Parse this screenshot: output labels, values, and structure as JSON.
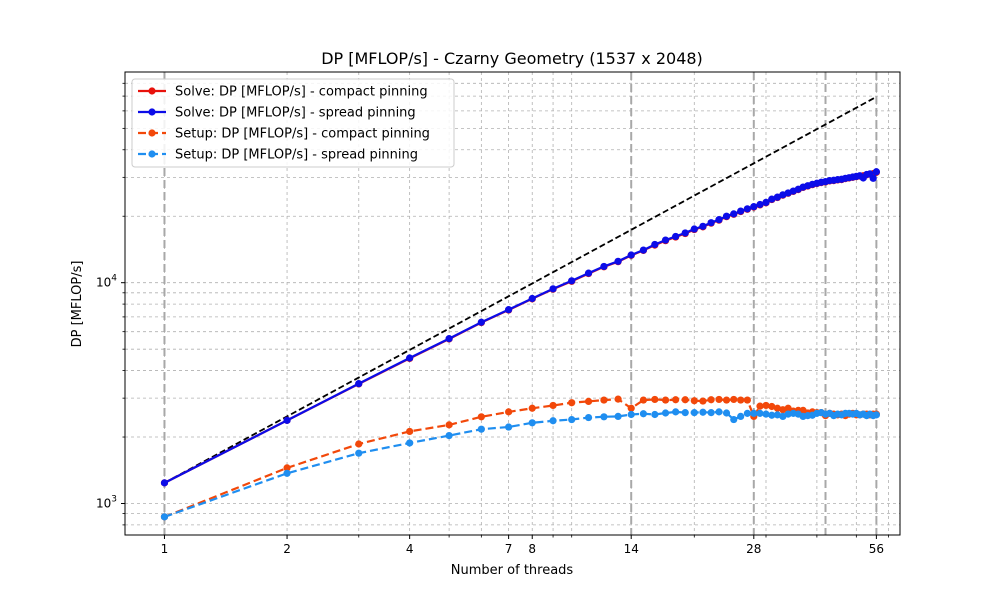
{
  "chart_data": {
    "type": "line",
    "title": "DP [MFLOP/s] - Czarny Geometry (1537 x 2048)",
    "xlabel": "Number of threads",
    "ylabel": "DP [MFLOP/s]",
    "xscale": "log",
    "yscale": "log",
    "xlim": [
      0.8,
      64
    ],
    "ylim": [
      720,
      90000
    ],
    "x_ticks": [
      1,
      2,
      4,
      7,
      8,
      14,
      28,
      56
    ],
    "y_ticks": [
      {
        "value": 1000,
        "base": "10",
        "exp": "3"
      },
      {
        "value": 10000,
        "base": "10",
        "exp": "4"
      }
    ],
    "y_minor_ticks": [
      800,
      900,
      2000,
      3000,
      4000,
      5000,
      6000,
      7000,
      8000,
      9000,
      20000,
      30000,
      40000,
      50000,
      60000,
      70000,
      80000
    ],
    "x_minor_ticks": [
      3,
      5,
      6,
      9,
      10,
      20,
      30,
      40,
      50,
      60
    ],
    "vlines": [
      1,
      14,
      28,
      42,
      56
    ],
    "grid": true,
    "legend_position": "upper-left",
    "reference_line": {
      "x": [
        1,
        56
      ],
      "y": [
        1240,
        69440
      ],
      "color": "#000000",
      "style": "dashed"
    },
    "series": [
      {
        "name": "Solve: DP [MFLOP/s] - compact pinning",
        "color": "#e8120c",
        "style": "solid",
        "x": [
          1,
          2,
          3,
          4,
          5,
          6,
          7,
          8,
          9,
          10,
          11,
          12,
          13,
          14,
          15,
          16,
          17,
          18,
          19,
          20,
          21,
          22,
          23,
          24,
          25,
          26,
          27,
          28,
          29,
          30,
          31,
          32,
          33,
          34,
          35,
          36,
          37,
          38,
          39,
          40,
          41,
          42,
          43,
          44,
          45,
          46,
          47,
          48,
          49,
          50,
          51,
          52,
          53,
          54,
          55,
          56
        ],
        "y": [
          1240,
          2380,
          3480,
          4540,
          5560,
          6600,
          7520,
          8450,
          9350,
          10150,
          11000,
          11800,
          12450,
          13300,
          14000,
          14800,
          15500,
          16100,
          16700,
          17400,
          17900,
          18600,
          19200,
          19900,
          20400,
          21000,
          21500,
          22000,
          22500,
          23000,
          23800,
          24300,
          24900,
          25400,
          25900,
          26400,
          27000,
          27400,
          27800,
          28100,
          28400,
          28600,
          28900,
          29000,
          29200,
          29300,
          29600,
          29800,
          30000,
          30200,
          30400,
          30500,
          30800,
          31000,
          31200,
          31600
        ]
      },
      {
        "name": "Solve: DP [MFLOP/s] - spread pinning",
        "color": "#0c0ce8",
        "style": "solid",
        "x": [
          1,
          2,
          3,
          4,
          5,
          6,
          7,
          8,
          9,
          10,
          11,
          12,
          13,
          14,
          15,
          16,
          17,
          18,
          19,
          20,
          21,
          22,
          23,
          24,
          25,
          26,
          27,
          28,
          29,
          30,
          31,
          32,
          33,
          34,
          35,
          36,
          37,
          38,
          39,
          40,
          41,
          42,
          43,
          44,
          45,
          46,
          47,
          48,
          49,
          50,
          51,
          52,
          53,
          54,
          55,
          56
        ],
        "y": [
          1240,
          2380,
          3490,
          4560,
          5580,
          6620,
          7550,
          8480,
          9380,
          10200,
          11050,
          11850,
          12500,
          13350,
          14050,
          14900,
          15600,
          16200,
          16800,
          17500,
          18000,
          18700,
          19300,
          20000,
          20500,
          21100,
          21600,
          22100,
          22600,
          23100,
          23900,
          24400,
          25000,
          25500,
          26000,
          26500,
          27100,
          27500,
          27900,
          28200,
          28500,
          28700,
          29000,
          29100,
          29300,
          29400,
          29700,
          29900,
          30100,
          30300,
          30500,
          29800,
          30900,
          31100,
          29700,
          31800
        ]
      },
      {
        "name": "Setup: DP [MFLOP/s] - compact pinning",
        "color": "#f2480a",
        "style": "dashed",
        "x": [
          1,
          2,
          3,
          4,
          5,
          6,
          7,
          8,
          9,
          10,
          11,
          12,
          13,
          14,
          15,
          16,
          17,
          18,
          19,
          20,
          21,
          22,
          23,
          24,
          25,
          26,
          27,
          28,
          29,
          30,
          31,
          32,
          33,
          34,
          35,
          36,
          37,
          38,
          39,
          40,
          41,
          42,
          43,
          44,
          45,
          46,
          47,
          48,
          49,
          50,
          51,
          52,
          53,
          54,
          55,
          56
        ],
        "y": [
          870,
          1450,
          1860,
          2120,
          2270,
          2470,
          2600,
          2700,
          2780,
          2860,
          2900,
          2940,
          2970,
          2700,
          2940,
          2960,
          2940,
          2950,
          2950,
          2920,
          2910,
          2950,
          2960,
          2940,
          2960,
          2940,
          2940,
          2480,
          2760,
          2780,
          2750,
          2700,
          2660,
          2700,
          2620,
          2640,
          2640,
          2570,
          2600,
          2580,
          2580,
          2500,
          2560,
          2540,
          2520,
          2540,
          2500,
          2540,
          2560,
          2520,
          2520,
          2540,
          2540,
          2520,
          2540,
          2540
        ]
      },
      {
        "name": "Setup: DP [MFLOP/s] - spread pinning",
        "color": "#1f8ef0",
        "style": "dashed",
        "x": [
          1,
          2,
          3,
          4,
          5,
          6,
          7,
          8,
          9,
          10,
          11,
          12,
          13,
          14,
          15,
          16,
          17,
          18,
          19,
          20,
          21,
          22,
          23,
          24,
          25,
          26,
          27,
          28,
          29,
          30,
          31,
          32,
          33,
          34,
          35,
          36,
          37,
          38,
          39,
          40,
          41,
          42,
          43,
          44,
          45,
          46,
          47,
          48,
          49,
          50,
          51,
          52,
          53,
          54,
          55,
          56
        ],
        "y": [
          870,
          1370,
          1690,
          1880,
          2030,
          2170,
          2220,
          2320,
          2370,
          2400,
          2450,
          2470,
          2480,
          2530,
          2550,
          2530,
          2570,
          2600,
          2580,
          2580,
          2590,
          2580,
          2600,
          2570,
          2400,
          2480,
          2560,
          2560,
          2560,
          2540,
          2510,
          2520,
          2480,
          2540,
          2560,
          2540,
          2480,
          2500,
          2510,
          2560,
          2580,
          2540,
          2560,
          2500,
          2540,
          2520,
          2560,
          2560,
          2540,
          2560,
          2520,
          2540,
          2500,
          2540,
          2500,
          2520
        ]
      }
    ]
  }
}
